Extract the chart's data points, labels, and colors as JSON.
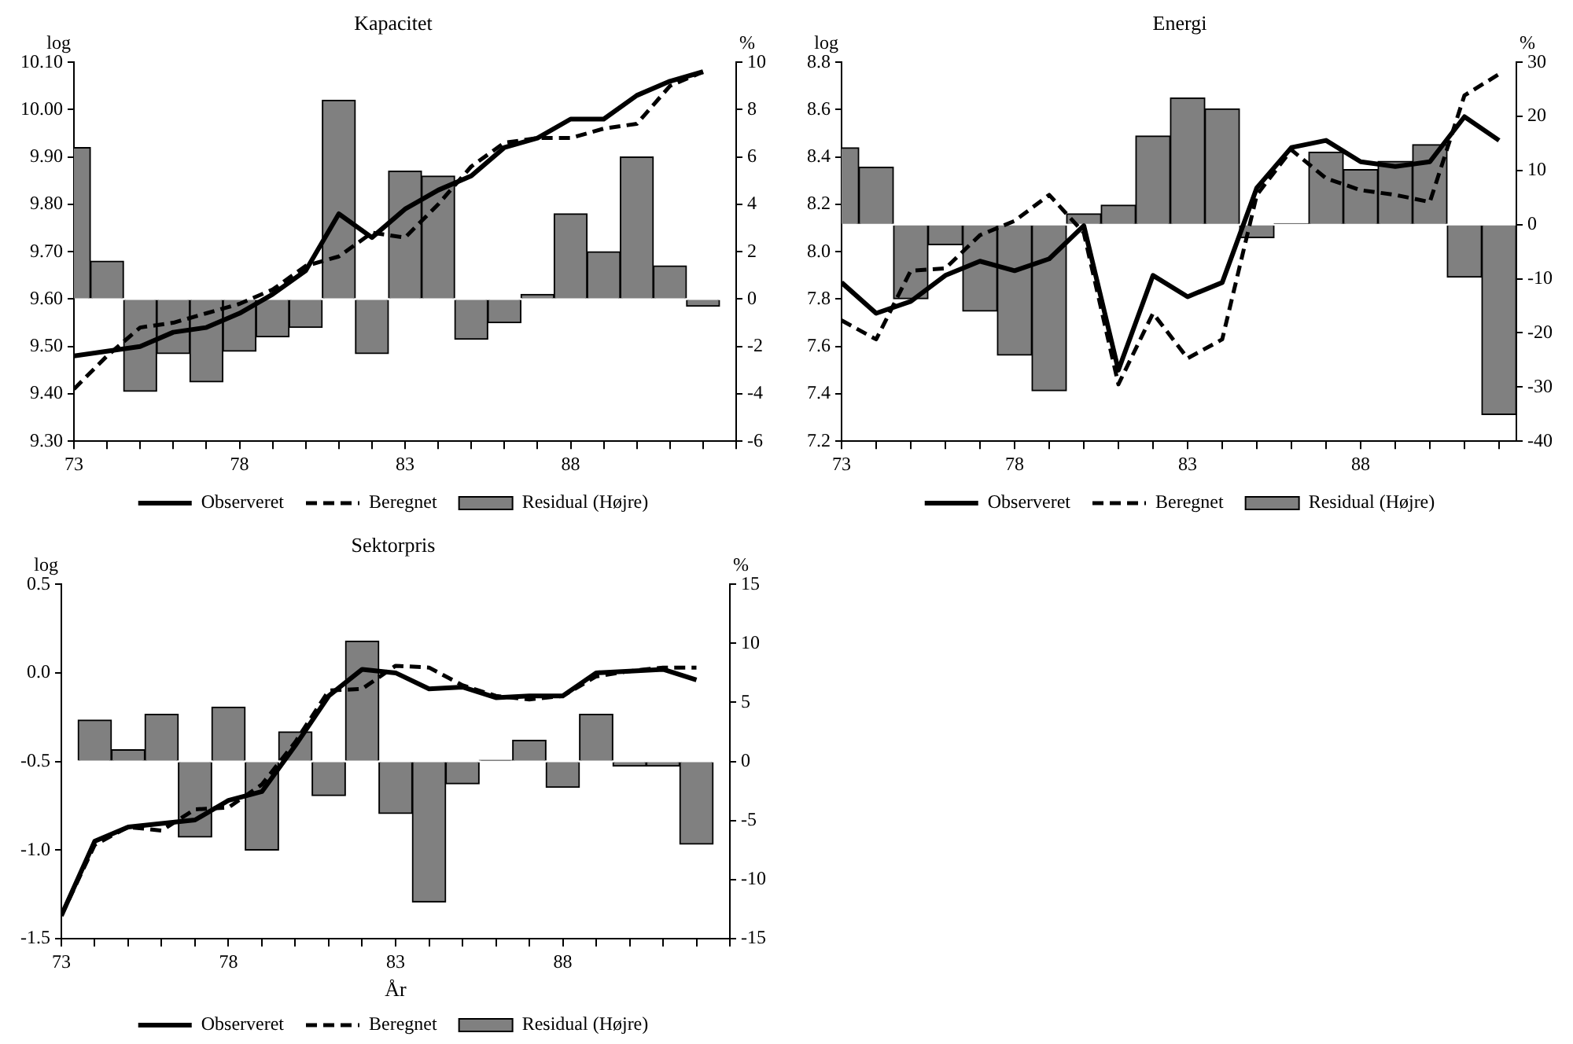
{
  "chart_data": [
    {
      "type": "line",
      "title": "Kapacitet",
      "ylabel": "log",
      "y2label": "%",
      "legend": "bottom",
      "grid": false,
      "x": [
        73,
        74,
        75,
        76,
        77,
        78,
        79,
        80,
        81,
        82,
        83,
        84,
        85,
        86,
        87,
        88,
        89,
        90,
        91,
        92
      ],
      "xlim": [
        73,
        93
      ],
      "xticks": [
        73,
        {
          "value": 74,
          "label": null
        },
        {
          "value": 75,
          "label": null
        },
        {
          "value": 76,
          "label": null
        },
        {
          "value": 77,
          "label": null
        },
        78,
        {
          "value": 79,
          "label": null
        },
        {
          "value": 80,
          "label": null
        },
        {
          "value": 81,
          "label": null
        },
        {
          "value": 82,
          "label": null
        },
        83,
        {
          "value": 84,
          "label": null
        },
        {
          "value": 85,
          "label": null
        },
        {
          "value": 86,
          "label": null
        },
        {
          "value": 87,
          "label": null
        },
        88,
        {
          "value": 89,
          "label": null
        },
        {
          "value": 90,
          "label": null
        },
        {
          "value": 91,
          "label": null
        },
        {
          "value": 92,
          "label": null
        },
        {
          "value": 93,
          "label": null
        }
      ],
      "ylim": [
        9.3,
        10.1
      ],
      "yticks": [
        {
          "value": 9.3,
          "label": "9.30"
        },
        {
          "value": 9.4,
          "label": "9.40"
        },
        {
          "value": 9.5,
          "label": "9.50"
        },
        {
          "value": 9.6,
          "label": "9.60"
        },
        {
          "value": 9.7,
          "label": "9.70"
        },
        {
          "value": 9.8,
          "label": "9.80"
        },
        {
          "value": 9.9,
          "label": "9.90"
        },
        {
          "value": 10.0,
          "label": "10.00"
        },
        {
          "value": 10.1,
          "label": "10.10"
        }
      ],
      "y2lim": [
        -6,
        10
      ],
      "y2ticks": [
        -6,
        -4,
        -2,
        0,
        2,
        4,
        6,
        8,
        10
      ],
      "series": [
        {
          "name": "Observeret",
          "color": "#000000",
          "line_style": "solid",
          "values": [
            9.48,
            9.49,
            9.5,
            9.53,
            9.54,
            9.57,
            9.61,
            9.66,
            9.78,
            9.73,
            9.79,
            9.83,
            9.86,
            9.92,
            9.94,
            9.98,
            9.98,
            10.03,
            10.06,
            10.08
          ]
        },
        {
          "name": "Beregnet",
          "color": "#000000",
          "line_style": "dashed",
          "values": [
            9.41,
            9.48,
            9.54,
            9.55,
            9.57,
            9.59,
            9.62,
            9.67,
            9.69,
            9.74,
            9.73,
            9.8,
            9.88,
            9.93,
            9.94,
            9.94,
            9.96,
            9.97,
            10.05,
            10.08
          ]
        },
        {
          "name": "Residual (Højre)",
          "type": "bar",
          "axis": "y2",
          "color": "#808080",
          "values": [
            6.4,
            1.6,
            -3.9,
            -2.3,
            -3.5,
            -2.2,
            -1.6,
            -1.2,
            8.4,
            -2.3,
            5.4,
            5.2,
            -1.7,
            -1.0,
            0.2,
            3.6,
            2.0,
            6.0,
            1.4,
            -0.3
          ]
        }
      ]
    },
    {
      "type": "line",
      "title": "Energi",
      "ylabel": "log",
      "y2label": "%",
      "legend": "bottom",
      "grid": false,
      "x": [
        73,
        74,
        75,
        76,
        77,
        78,
        79,
        80,
        81,
        82,
        83,
        84,
        85,
        86,
        87,
        88,
        89,
        90,
        91,
        92
      ],
      "xlim": [
        73,
        92.5
      ],
      "xticks": [
        73,
        {
          "value": 74,
          "label": null
        },
        {
          "value": 75,
          "label": null
        },
        {
          "value": 76,
          "label": null
        },
        {
          "value": 77,
          "label": null
        },
        78,
        {
          "value": 79,
          "label": null
        },
        {
          "value": 80,
          "label": null
        },
        {
          "value": 81,
          "label": null
        },
        {
          "value": 82,
          "label": null
        },
        83,
        {
          "value": 84,
          "label": null
        },
        {
          "value": 85,
          "label": null
        },
        {
          "value": 86,
          "label": null
        },
        {
          "value": 87,
          "label": null
        },
        88,
        {
          "value": 89,
          "label": null
        },
        {
          "value": 90,
          "label": null
        },
        {
          "value": 91,
          "label": null
        },
        {
          "value": 92,
          "label": null
        }
      ],
      "ylim": [
        7.2,
        8.8
      ],
      "yticks": [
        7.2,
        7.4,
        7.6,
        7.8,
        {
          "value": 8,
          "label": "8.0"
        },
        8.2,
        8.4,
        8.6,
        8.8
      ],
      "y2lim": [
        -40,
        30
      ],
      "y2ticks": [
        -40,
        -30,
        -20,
        -10,
        0,
        10,
        20,
        30
      ],
      "series": [
        {
          "name": "Observeret",
          "color": "#000000",
          "line_style": "solid",
          "values": [
            7.87,
            7.74,
            7.79,
            7.9,
            7.96,
            7.92,
            7.97,
            8.11,
            7.5,
            7.9,
            7.81,
            7.87,
            8.27,
            8.44,
            8.47,
            8.38,
            8.36,
            8.38,
            8.57,
            8.47
          ]
        },
        {
          "name": "Beregnet",
          "color": "#000000",
          "line_style": "dashed",
          "values": [
            7.71,
            7.63,
            7.92,
            7.93,
            8.07,
            8.13,
            8.24,
            8.08,
            7.44,
            7.74,
            7.55,
            7.63,
            8.24,
            8.43,
            8.31,
            8.26,
            8.24,
            8.21,
            8.66,
            8.75
          ]
        },
        {
          "name": "Residual (Højre)",
          "type": "bar",
          "axis": "y2",
          "color": "#808080",
          "values": [
            14.2,
            10.6,
            -13.7,
            -3.7,
            -16.0,
            -24.1,
            -30.7,
            2.0,
            3.6,
            16.4,
            23.4,
            21.4,
            -2.4,
            0.2,
            13.4,
            10.2,
            11.7,
            14.8,
            -9.7,
            -35.1
          ]
        }
      ]
    },
    {
      "type": "line",
      "title": "Sektorpris",
      "xlabel": "År",
      "ylabel": "log",
      "y2label": "%",
      "legend": "bottom",
      "grid": false,
      "x": [
        73,
        74,
        75,
        76,
        77,
        78,
        79,
        80,
        81,
        82,
        83,
        84,
        85,
        86,
        87,
        88,
        89,
        90,
        91,
        92
      ],
      "xlim": [
        73,
        93
      ],
      "xticks": [
        73,
        {
          "value": 74,
          "label": null
        },
        {
          "value": 75,
          "label": null
        },
        {
          "value": 76,
          "label": null
        },
        {
          "value": 77,
          "label": null
        },
        78,
        {
          "value": 79,
          "label": null
        },
        {
          "value": 80,
          "label": null
        },
        {
          "value": 81,
          "label": null
        },
        {
          "value": 82,
          "label": null
        },
        83,
        {
          "value": 84,
          "label": null
        },
        {
          "value": 85,
          "label": null
        },
        {
          "value": 86,
          "label": null
        },
        {
          "value": 87,
          "label": null
        },
        88,
        {
          "value": 89,
          "label": null
        },
        {
          "value": 90,
          "label": null
        },
        {
          "value": 91,
          "label": null
        },
        {
          "value": 92,
          "label": null
        },
        {
          "value": 93,
          "label": null
        }
      ],
      "ylim": [
        -1.5,
        0.5
      ],
      "yticks": [
        -1.5,
        {
          "value": -1,
          "label": "-1.0"
        },
        -0.5,
        {
          "value": 0,
          "label": "0.0"
        },
        0.5
      ],
      "y2lim": [
        -15,
        15
      ],
      "y2ticks": [
        -15,
        -10,
        -5,
        0,
        5,
        10,
        15
      ],
      "series": [
        {
          "name": "Observeret",
          "color": "#000000",
          "line_style": "solid",
          "values": [
            -1.37,
            -0.95,
            -0.87,
            -0.85,
            -0.83,
            -0.72,
            -0.67,
            -0.41,
            -0.13,
            0.02,
            0.0,
            -0.09,
            -0.08,
            -0.14,
            -0.13,
            -0.13,
            0.0,
            0.01,
            0.02,
            -0.04
          ]
        },
        {
          "name": "Beregnet",
          "color": "#000000",
          "line_style": "dashed",
          "values": [
            -1.37,
            -0.97,
            -0.87,
            -0.89,
            -0.77,
            -0.76,
            -0.63,
            -0.39,
            -0.1,
            -0.09,
            0.04,
            0.03,
            -0.07,
            -0.13,
            -0.15,
            -0.13,
            -0.02,
            0.01,
            0.03,
            0.03
          ]
        },
        {
          "name": "Residual (Højre)",
          "type": "bar",
          "axis": "y2",
          "color": "#808080",
          "values": [
            0,
            3.5,
            1.0,
            4.0,
            -6.4,
            4.6,
            -7.5,
            2.5,
            -2.9,
            10.2,
            -4.4,
            -11.9,
            -1.9,
            0.1,
            1.8,
            -2.2,
            4.0,
            -0.4,
            -0.4,
            -7.0
          ]
        }
      ]
    }
  ]
}
